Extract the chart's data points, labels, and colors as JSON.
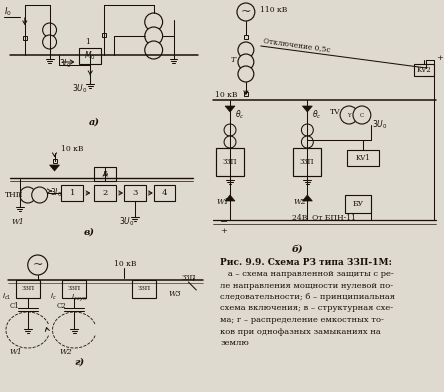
{
  "bg_color": "#dedad0",
  "dc": "#1a1008",
  "title": "Рис. 9.9. Схема РЗ типа ЗЗП-1М:",
  "caption": [
    "   а – схема направленной защиты с ре-",
    "ле направления мощности нулевой по-",
    "следовательности; б – принципиальная",
    "схема включения; в – структурная схе-",
    "ма; г – распределение емкостных то-",
    "ков при однофазных замыканиях на",
    "землю"
  ],
  "label_a": "а)",
  "label_b": "б)",
  "label_v": "в)",
  "label_g": "г)"
}
